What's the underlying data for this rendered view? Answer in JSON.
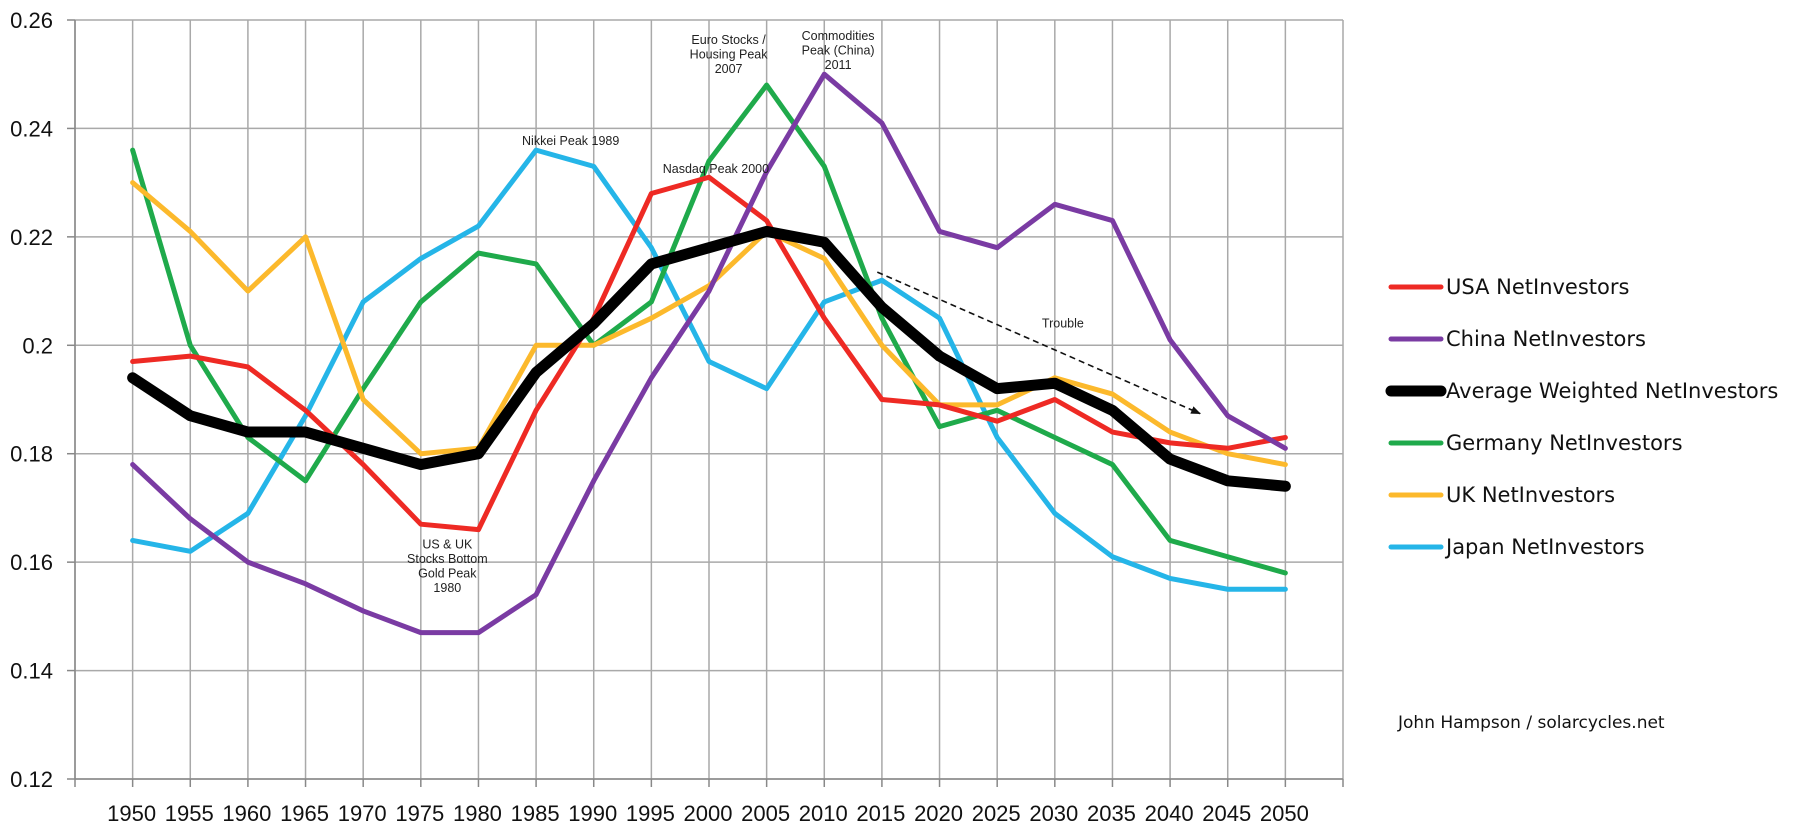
{
  "chart_data": {
    "type": "line",
    "title": "",
    "xlabel": "",
    "ylabel": "",
    "x": [
      1950,
      1955,
      1960,
      1965,
      1970,
      1975,
      1980,
      1985,
      1990,
      1995,
      2000,
      2005,
      2010,
      2015,
      2020,
      2025,
      2030,
      2035,
      2040,
      2045,
      2050
    ],
    "x_tick_labels": [
      "1950",
      "1955",
      "1960",
      "1965",
      "1970",
      "1975",
      "1980",
      "1985",
      "1990",
      "1995",
      "2000",
      "2005",
      "2010",
      "2015",
      "2020",
      "2025",
      "2030",
      "2035",
      "2040",
      "2045",
      "2050"
    ],
    "ylim": [
      0.12,
      0.26
    ],
    "y_ticks": [
      0.12,
      0.14,
      0.16,
      0.18,
      0.2,
      0.22,
      0.24,
      0.26
    ],
    "y_tick_labels": [
      "0.12",
      "0.14",
      "0.16",
      "0.18",
      "0.2",
      "0.22",
      "0.24",
      "0.26"
    ],
    "grid": true,
    "legend_position": "right",
    "series": [
      {
        "name": "USA NetInvestors",
        "color": "#ee2a24",
        "values": [
          0.197,
          0.198,
          0.196,
          0.188,
          0.178,
          0.167,
          0.166,
          0.188,
          0.205,
          0.228,
          0.231,
          0.223,
          0.205,
          0.19,
          0.189,
          0.186,
          0.19,
          0.184,
          0.182,
          0.181,
          0.183
        ]
      },
      {
        "name": "China NetInvestors",
        "color": "#7a3ba3",
        "values": [
          0.178,
          0.168,
          0.16,
          0.156,
          0.151,
          0.147,
          0.147,
          0.154,
          0.175,
          0.194,
          0.21,
          0.232,
          0.25,
          0.241,
          0.221,
          0.218,
          0.226,
          0.223,
          0.201,
          0.187,
          0.181
        ]
      },
      {
        "name": "Average Weighted NetInvestors",
        "color": "#000000",
        "values": [
          0.194,
          0.187,
          0.184,
          0.184,
          0.181,
          0.178,
          0.18,
          0.195,
          0.204,
          0.215,
          0.218,
          0.221,
          0.219,
          0.207,
          0.198,
          0.192,
          0.193,
          0.188,
          0.179,
          0.175,
          0.174
        ]
      },
      {
        "name": "Germany NetInvestors",
        "color": "#1faa4b",
        "values": [
          0.236,
          0.2,
          0.183,
          0.175,
          0.192,
          0.208,
          0.217,
          0.215,
          0.2,
          0.208,
          0.234,
          0.248,
          0.233,
          0.205,
          0.185,
          0.188,
          0.183,
          0.178,
          0.164,
          0.161,
          0.158
        ]
      },
      {
        "name": "UK NetInvestors",
        "color": "#fcb92c",
        "values": [
          0.23,
          0.221,
          0.21,
          0.22,
          0.19,
          0.18,
          0.181,
          0.2,
          0.2,
          0.205,
          0.211,
          0.221,
          0.216,
          0.2,
          0.189,
          0.189,
          0.194,
          0.191,
          0.184,
          0.18,
          0.178
        ]
      },
      {
        "name": "Japan NetInvestors",
        "color": "#25b5e8",
        "values": [
          0.164,
          0.162,
          0.169,
          0.187,
          0.208,
          0.216,
          0.222,
          0.236,
          0.233,
          0.218,
          0.197,
          0.192,
          0.208,
          0.212,
          0.205,
          0.183,
          0.169,
          0.161,
          0.157,
          0.155,
          0.155
        ]
      }
    ],
    "annotations": [
      {
        "id": "nikkei",
        "lines": [
          "Nikkei Peak 1989"
        ],
        "x": 1988,
        "y": 0.2369
      },
      {
        "id": "nasdaq",
        "lines": [
          "Nasdaq Peak 2000"
        ],
        "x": 2000.6,
        "y": 0.2318
      },
      {
        "id": "euro",
        "lines": [
          "Euro Stocks /",
          "Housing Peak",
          "2007"
        ],
        "x": 2001.7,
        "y": 0.2556
      },
      {
        "id": "commodities",
        "lines": [
          "Commodities",
          "Peak (China)",
          "2011"
        ],
        "x": 2011.2,
        "y": 0.2563
      },
      {
        "id": "trouble",
        "lines": [
          "Trouble"
        ],
        "x": 2030.7,
        "y": 0.2033
      },
      {
        "id": "ususbottom",
        "lines": [
          "US & UK",
          "Stocks Bottom",
          "Gold Peak",
          "1980"
        ],
        "x": 1977.3,
        "y": 0.1625
      }
    ],
    "arrow": {
      "from": [
        2014.6,
        0.2135
      ],
      "to": [
        2042.6,
        0.1874
      ]
    }
  },
  "credit": "John Hampson / solarcycles.net"
}
